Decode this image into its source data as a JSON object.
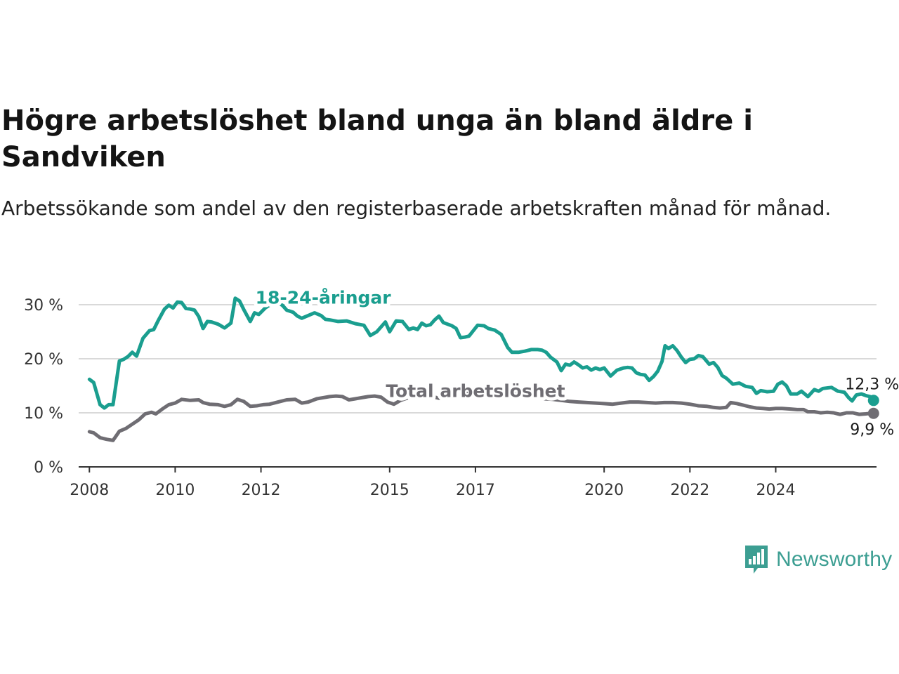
{
  "header": {
    "title": "Högre arbetslöshet bland unga än bland äldre i Sandviken",
    "subtitle": "Arbetssökande som andel av den registerbaserade arbetskraften månad för månad."
  },
  "brand": {
    "name": "Newsworthy",
    "logo_icon": "bar-chart-speech-bubble-icon",
    "color": "#3c9e92"
  },
  "chart_data": {
    "type": "line",
    "title": "Högre arbetslöshet bland unga än bland äldre i Sandviken",
    "subtitle": "Arbetssökande som andel av den registerbaserade arbetskraften månad för månad.",
    "xlabel": "",
    "ylabel": "",
    "x_range": [
      2007.75,
      2026.35
    ],
    "ylim": [
      0,
      30
    ],
    "y_ticks": [
      {
        "value": 0,
        "label": "0 %"
      },
      {
        "value": 10,
        "label": "10 %"
      },
      {
        "value": 20,
        "label": "20 %"
      },
      {
        "value": 30,
        "label": "30 %"
      }
    ],
    "x_ticks": [
      {
        "value": 2008,
        "label": "2008"
      },
      {
        "value": 2010,
        "label": "2010"
      },
      {
        "value": 2012,
        "label": "2012"
      },
      {
        "value": 2015,
        "label": "2015"
      },
      {
        "value": 2017,
        "label": "2017"
      },
      {
        "value": 2020,
        "label": "2020"
      },
      {
        "value": 2022,
        "label": "2022"
      },
      {
        "value": 2024,
        "label": "2024"
      }
    ],
    "grid": true,
    "legend": "inline labels",
    "series": [
      {
        "name": "18-24-åringar",
        "color": "#1a9e8f",
        "label_at": [
          2013.45,
          30.2
        ],
        "end_label": "12,3 %",
        "points": [
          [
            2008.0,
            16.2
          ],
          [
            2008.1,
            15.6
          ],
          [
            2008.25,
            11.5
          ],
          [
            2008.35,
            10.9
          ],
          [
            2008.45,
            11.5
          ],
          [
            2008.55,
            11.5
          ],
          [
            2008.7,
            19.6
          ],
          [
            2008.8,
            19.9
          ],
          [
            2008.9,
            20.4
          ],
          [
            2009.0,
            21.2
          ],
          [
            2009.1,
            20.5
          ],
          [
            2009.25,
            23.8
          ],
          [
            2009.4,
            25.2
          ],
          [
            2009.5,
            25.4
          ],
          [
            2009.6,
            27.0
          ],
          [
            2009.75,
            29.2
          ],
          [
            2009.85,
            29.9
          ],
          [
            2009.95,
            29.4
          ],
          [
            2010.05,
            30.5
          ],
          [
            2010.15,
            30.4
          ],
          [
            2010.25,
            29.3
          ],
          [
            2010.35,
            29.2
          ],
          [
            2010.45,
            29.0
          ],
          [
            2010.55,
            27.8
          ],
          [
            2010.65,
            25.6
          ],
          [
            2010.75,
            26.9
          ],
          [
            2010.85,
            26.8
          ],
          [
            2011.0,
            26.4
          ],
          [
            2011.15,
            25.7
          ],
          [
            2011.3,
            26.6
          ],
          [
            2011.4,
            31.2
          ],
          [
            2011.5,
            30.7
          ],
          [
            2011.6,
            29.1
          ],
          [
            2011.75,
            26.9
          ],
          [
            2011.85,
            28.5
          ],
          [
            2011.95,
            28.2
          ],
          [
            2012.1,
            29.4
          ],
          [
            2012.25,
            30.2
          ],
          [
            2012.4,
            30.3
          ],
          [
            2012.5,
            29.9
          ],
          [
            2012.6,
            29.0
          ],
          [
            2012.75,
            28.6
          ],
          [
            2012.85,
            27.9
          ],
          [
            2012.95,
            27.5
          ],
          [
            2013.1,
            28.0
          ],
          [
            2013.25,
            28.5
          ],
          [
            2013.4,
            28.0
          ],
          [
            2013.5,
            27.3
          ],
          [
            2013.6,
            27.2
          ],
          [
            2013.8,
            26.9
          ],
          [
            2014.0,
            27.0
          ],
          [
            2014.2,
            26.5
          ],
          [
            2014.4,
            26.2
          ],
          [
            2014.55,
            24.3
          ],
          [
            2014.7,
            25.0
          ],
          [
            2014.9,
            26.8
          ],
          [
            2015.0,
            25.0
          ],
          [
            2015.15,
            27.0
          ],
          [
            2015.3,
            26.9
          ],
          [
            2015.45,
            25.4
          ],
          [
            2015.55,
            25.7
          ],
          [
            2015.65,
            25.4
          ],
          [
            2015.75,
            26.6
          ],
          [
            2015.85,
            26.1
          ],
          [
            2015.95,
            26.3
          ],
          [
            2016.05,
            27.2
          ],
          [
            2016.15,
            27.9
          ],
          [
            2016.25,
            26.7
          ],
          [
            2016.35,
            26.4
          ],
          [
            2016.45,
            26.1
          ],
          [
            2016.55,
            25.6
          ],
          [
            2016.65,
            23.9
          ],
          [
            2016.75,
            24.0
          ],
          [
            2016.85,
            24.2
          ],
          [
            2016.95,
            25.2
          ],
          [
            2017.05,
            26.2
          ],
          [
            2017.2,
            26.1
          ],
          [
            2017.3,
            25.6
          ],
          [
            2017.45,
            25.3
          ],
          [
            2017.6,
            24.5
          ],
          [
            2017.75,
            22.1
          ],
          [
            2017.85,
            21.2
          ],
          [
            2018.0,
            21.2
          ],
          [
            2018.15,
            21.4
          ],
          [
            2018.3,
            21.7
          ],
          [
            2018.45,
            21.7
          ],
          [
            2018.55,
            21.6
          ],
          [
            2018.65,
            21.2
          ],
          [
            2018.75,
            20.3
          ],
          [
            2018.9,
            19.4
          ],
          [
            2019.0,
            17.8
          ],
          [
            2019.1,
            19.0
          ],
          [
            2019.2,
            18.8
          ],
          [
            2019.3,
            19.4
          ],
          [
            2019.4,
            18.9
          ],
          [
            2019.5,
            18.3
          ],
          [
            2019.6,
            18.5
          ],
          [
            2019.7,
            17.9
          ],
          [
            2019.8,
            18.3
          ],
          [
            2019.9,
            18.0
          ],
          [
            2020.0,
            18.3
          ],
          [
            2020.15,
            16.8
          ],
          [
            2020.3,
            17.9
          ],
          [
            2020.45,
            18.3
          ],
          [
            2020.55,
            18.4
          ],
          [
            2020.65,
            18.3
          ],
          [
            2020.75,
            17.4
          ],
          [
            2020.85,
            17.1
          ],
          [
            2020.95,
            17.0
          ],
          [
            2021.05,
            16.0
          ],
          [
            2021.15,
            16.7
          ],
          [
            2021.25,
            17.7
          ],
          [
            2021.35,
            19.5
          ],
          [
            2021.42,
            22.4
          ],
          [
            2021.5,
            21.9
          ],
          [
            2021.6,
            22.4
          ],
          [
            2021.7,
            21.5
          ],
          [
            2021.8,
            20.3
          ],
          [
            2021.9,
            19.3
          ],
          [
            2022.0,
            19.9
          ],
          [
            2022.1,
            20.0
          ],
          [
            2022.2,
            20.6
          ],
          [
            2022.3,
            20.4
          ],
          [
            2022.45,
            19.0
          ],
          [
            2022.55,
            19.3
          ],
          [
            2022.65,
            18.4
          ],
          [
            2022.75,
            16.9
          ],
          [
            2022.85,
            16.4
          ],
          [
            2023.0,
            15.3
          ],
          [
            2023.15,
            15.5
          ],
          [
            2023.3,
            14.9
          ],
          [
            2023.45,
            14.7
          ],
          [
            2023.55,
            13.6
          ],
          [
            2023.65,
            14.1
          ],
          [
            2023.8,
            13.9
          ],
          [
            2023.95,
            14.0
          ],
          [
            2024.05,
            15.3
          ],
          [
            2024.15,
            15.7
          ],
          [
            2024.25,
            15.0
          ],
          [
            2024.35,
            13.5
          ],
          [
            2024.5,
            13.5
          ],
          [
            2024.6,
            14.0
          ],
          [
            2024.75,
            13.0
          ],
          [
            2024.9,
            14.3
          ],
          [
            2025.0,
            14.0
          ],
          [
            2025.1,
            14.5
          ],
          [
            2025.3,
            14.7
          ],
          [
            2025.45,
            14.0
          ],
          [
            2025.6,
            13.8
          ],
          [
            2025.7,
            12.8
          ],
          [
            2025.78,
            12.2
          ],
          [
            2025.88,
            13.3
          ],
          [
            2026.0,
            13.5
          ],
          [
            2026.1,
            13.2
          ],
          [
            2026.2,
            13.0
          ],
          [
            2026.28,
            12.3
          ]
        ]
      },
      {
        "name": "Total arbetslöshet",
        "color": "#6f6d73",
        "label_at": [
          2017.0,
          12.9
        ],
        "end_label": "9,9 %",
        "points": [
          [
            2008.0,
            6.5
          ],
          [
            2008.1,
            6.3
          ],
          [
            2008.25,
            5.4
          ],
          [
            2008.4,
            5.1
          ],
          [
            2008.55,
            4.9
          ],
          [
            2008.7,
            6.6
          ],
          [
            2008.85,
            7.1
          ],
          [
            2009.0,
            7.9
          ],
          [
            2009.15,
            8.7
          ],
          [
            2009.3,
            9.8
          ],
          [
            2009.45,
            10.1
          ],
          [
            2009.55,
            9.8
          ],
          [
            2009.7,
            10.7
          ],
          [
            2009.85,
            11.5
          ],
          [
            2010.0,
            11.8
          ],
          [
            2010.15,
            12.5
          ],
          [
            2010.35,
            12.3
          ],
          [
            2010.55,
            12.4
          ],
          [
            2010.65,
            11.9
          ],
          [
            2010.8,
            11.6
          ],
          [
            2011.0,
            11.5
          ],
          [
            2011.15,
            11.2
          ],
          [
            2011.3,
            11.5
          ],
          [
            2011.45,
            12.5
          ],
          [
            2011.6,
            12.1
          ],
          [
            2011.75,
            11.2
          ],
          [
            2011.9,
            11.3
          ],
          [
            2012.05,
            11.5
          ],
          [
            2012.2,
            11.6
          ],
          [
            2012.4,
            12.0
          ],
          [
            2012.6,
            12.4
          ],
          [
            2012.8,
            12.5
          ],
          [
            2012.95,
            11.8
          ],
          [
            2013.1,
            12.0
          ],
          [
            2013.3,
            12.6
          ],
          [
            2013.45,
            12.8
          ],
          [
            2013.6,
            13.0
          ],
          [
            2013.75,
            13.1
          ],
          [
            2013.9,
            13.0
          ],
          [
            2014.05,
            12.4
          ],
          [
            2014.2,
            12.6
          ],
          [
            2014.35,
            12.8
          ],
          [
            2014.5,
            13.0
          ],
          [
            2014.65,
            13.1
          ],
          [
            2014.8,
            12.9
          ],
          [
            2014.95,
            12.0
          ],
          [
            2015.1,
            11.6
          ],
          [
            2015.25,
            12.3
          ],
          [
            2015.4,
            12.7
          ],
          [
            2015.55,
            13.4
          ],
          [
            2015.7,
            13.5
          ],
          [
            2015.85,
            13.4
          ],
          [
            2016.0,
            13.0
          ],
          [
            2016.15,
            12.7
          ],
          [
            2016.3,
            13.4
          ],
          [
            2016.45,
            13.6
          ],
          [
            2016.55,
            14.1
          ],
          [
            2016.7,
            13.9
          ],
          [
            2016.85,
            13.5
          ],
          [
            2017.0,
            13.2
          ],
          [
            2017.15,
            13.6
          ],
          [
            2017.3,
            13.8
          ],
          [
            2017.45,
            14.0
          ],
          [
            2017.6,
            13.8
          ],
          [
            2017.75,
            13.6
          ],
          [
            2017.9,
            13.4
          ],
          [
            2018.05,
            13.3
          ],
          [
            2018.2,
            13.1
          ],
          [
            2018.4,
            12.9
          ],
          [
            2018.6,
            12.6
          ],
          [
            2018.8,
            12.5
          ],
          [
            2019.0,
            12.3
          ],
          [
            2019.2,
            12.1
          ],
          [
            2019.4,
            12.0
          ],
          [
            2019.6,
            11.9
          ],
          [
            2019.8,
            11.8
          ],
          [
            2020.0,
            11.7
          ],
          [
            2020.2,
            11.6
          ],
          [
            2020.4,
            11.8
          ],
          [
            2020.6,
            12.0
          ],
          [
            2020.8,
            12.0
          ],
          [
            2021.0,
            11.9
          ],
          [
            2021.2,
            11.8
          ],
          [
            2021.4,
            11.9
          ],
          [
            2021.6,
            11.9
          ],
          [
            2021.8,
            11.8
          ],
          [
            2022.0,
            11.6
          ],
          [
            2022.2,
            11.3
          ],
          [
            2022.4,
            11.2
          ],
          [
            2022.55,
            11.0
          ],
          [
            2022.7,
            10.9
          ],
          [
            2022.85,
            11.0
          ],
          [
            2022.95,
            11.9
          ],
          [
            2023.1,
            11.7
          ],
          [
            2023.25,
            11.4
          ],
          [
            2023.4,
            11.1
          ],
          [
            2023.55,
            10.9
          ],
          [
            2023.7,
            10.8
          ],
          [
            2023.85,
            10.7
          ],
          [
            2024.0,
            10.8
          ],
          [
            2024.15,
            10.8
          ],
          [
            2024.35,
            10.7
          ],
          [
            2024.5,
            10.6
          ],
          [
            2024.65,
            10.6
          ],
          [
            2024.75,
            10.2
          ],
          [
            2024.9,
            10.2
          ],
          [
            2025.05,
            10.0
          ],
          [
            2025.2,
            10.1
          ],
          [
            2025.35,
            10.0
          ],
          [
            2025.5,
            9.7
          ],
          [
            2025.65,
            10.0
          ],
          [
            2025.8,
            10.0
          ],
          [
            2025.95,
            9.7
          ],
          [
            2026.1,
            9.8
          ],
          [
            2026.2,
            9.9
          ],
          [
            2026.28,
            9.9
          ]
        ]
      }
    ]
  }
}
